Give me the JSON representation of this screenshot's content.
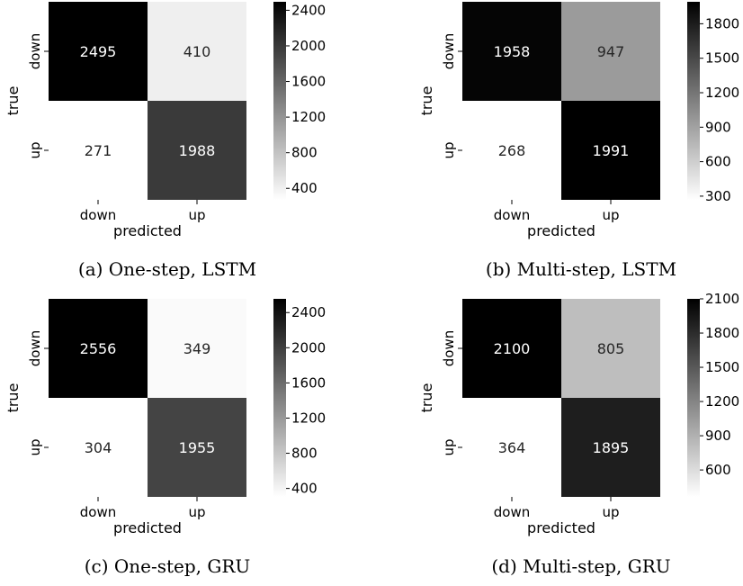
{
  "chart_data": [
    {
      "type": "heatmap",
      "caption": "(a) One-step, LSTM",
      "xlabel": "predicted",
      "ylabel": "true",
      "x_categories": [
        "down",
        "up"
      ],
      "y_categories": [
        "down",
        "up"
      ],
      "values": [
        [
          2495,
          410
        ],
        [
          271,
          1988
        ]
      ],
      "colorbar": {
        "min": 271,
        "max": 2495,
        "ticks": [
          400,
          800,
          1200,
          1600,
          2000,
          2400
        ]
      },
      "colormap": "Greys"
    },
    {
      "type": "heatmap",
      "caption": "(b) Multi-step, LSTM",
      "xlabel": "predicted",
      "ylabel": "true",
      "x_categories": [
        "down",
        "up"
      ],
      "y_categories": [
        "down",
        "up"
      ],
      "values": [
        [
          1958,
          947
        ],
        [
          268,
          1991
        ]
      ],
      "colorbar": {
        "min": 268,
        "max": 1991,
        "ticks": [
          300,
          600,
          900,
          1200,
          1500,
          1800
        ]
      },
      "colormap": "Greys"
    },
    {
      "type": "heatmap",
      "caption": "(c) One-step, GRU",
      "xlabel": "predicted",
      "ylabel": "true",
      "x_categories": [
        "down",
        "up"
      ],
      "y_categories": [
        "down",
        "up"
      ],
      "values": [
        [
          2556,
          349
        ],
        [
          304,
          1955
        ]
      ],
      "colorbar": {
        "min": 304,
        "max": 2556,
        "ticks": [
          400,
          800,
          1200,
          1600,
          2000,
          2400
        ]
      },
      "colormap": "Greys"
    },
    {
      "type": "heatmap",
      "caption": "(d) Multi-step, GRU",
      "xlabel": "predicted",
      "ylabel": "true",
      "x_categories": [
        "down",
        "up"
      ],
      "y_categories": [
        "down",
        "up"
      ],
      "values": [
        [
          2100,
          805
        ],
        [
          364,
          1895
        ]
      ],
      "colorbar": {
        "min": 364,
        "max": 2100,
        "ticks": [
          600,
          900,
          1200,
          1500,
          1800,
          2100
        ]
      },
      "colormap": "Greys"
    }
  ]
}
